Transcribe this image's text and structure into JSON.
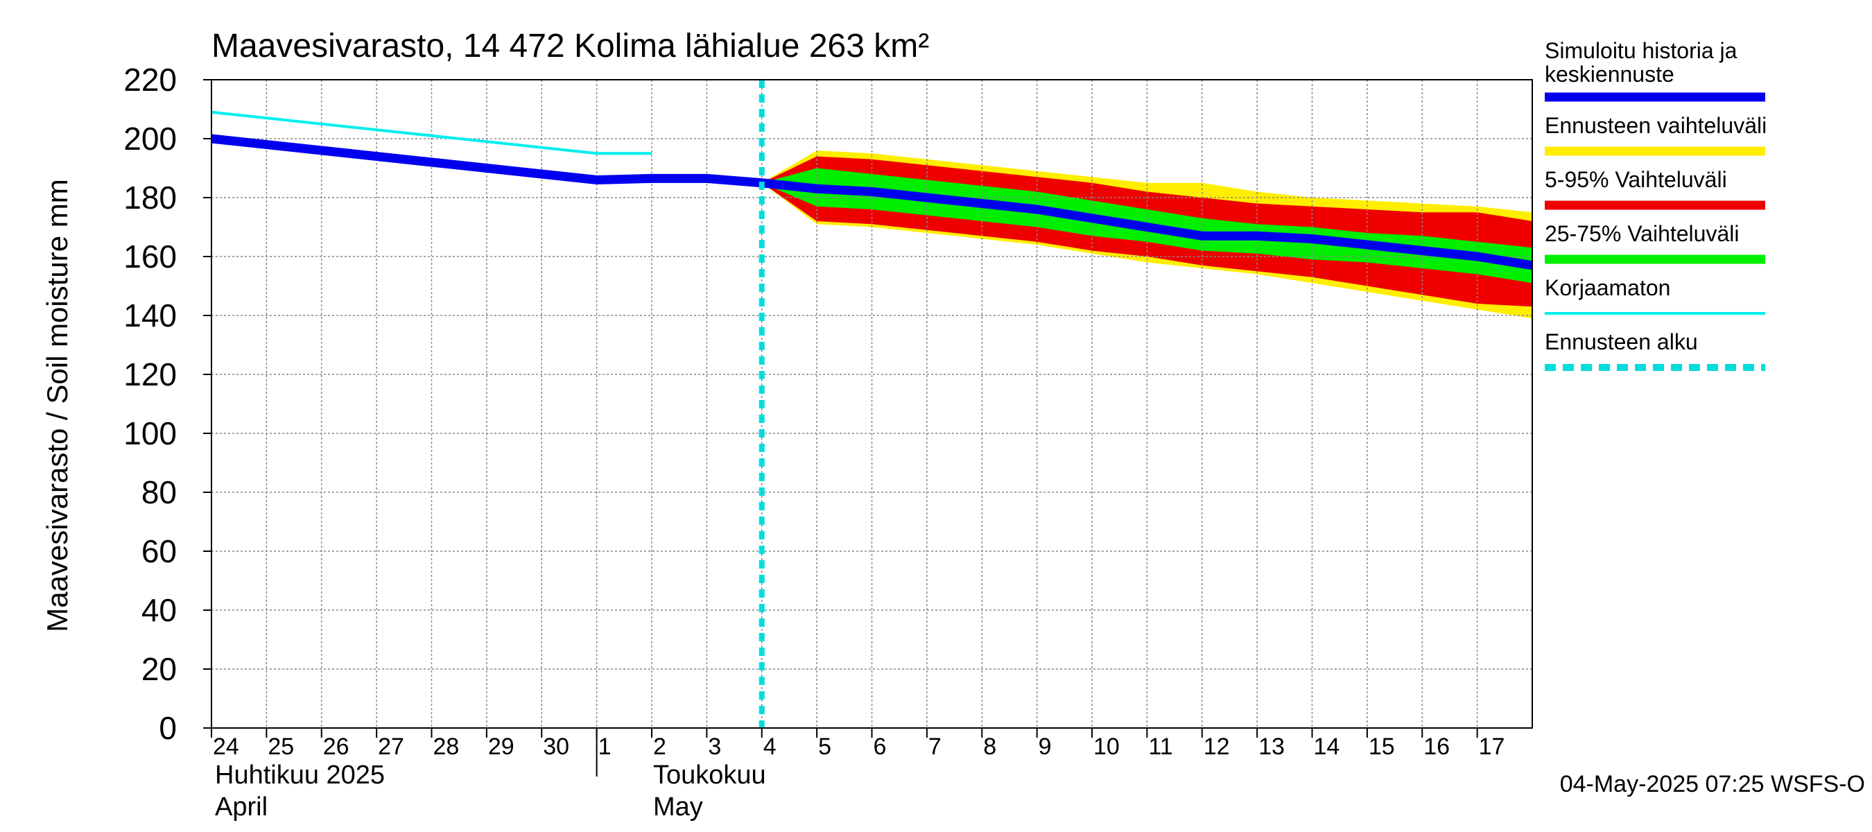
{
  "colors": {
    "median": "#0000ee",
    "range_outer": "#ffee00",
    "range_5_95": "#ee0000",
    "range_25_75": "#00ee00",
    "uncorrected": "#00eeee",
    "forecast_start": "#00dddd",
    "grid": "#888888"
  },
  "chart_data": {
    "type": "area",
    "title": "Maavesivarasto, 14 472 Kolima lähialue 263 km²",
    "ylabel": "Maavesivarasto / Soil moisture   mm",
    "ylim": [
      0,
      220
    ],
    "yticks": [
      0,
      20,
      40,
      60,
      80,
      100,
      120,
      140,
      160,
      180,
      200,
      220
    ],
    "xlim": [
      "2025-04-24",
      "2025-05-18"
    ],
    "grid": true,
    "legend_position": "right",
    "x_ticks": [
      "24",
      "25",
      "26",
      "27",
      "28",
      "29",
      "30",
      "1",
      "2",
      "3",
      "4",
      "5",
      "6",
      "7",
      "8",
      "9",
      "10",
      "11",
      "12",
      "13",
      "14",
      "15",
      "16",
      "17"
    ],
    "month_labels": [
      {
        "fi": "Huhtikuu  2025",
        "en": "April"
      },
      {
        "fi": "Toukokuu",
        "en": "May"
      }
    ],
    "forecast_start": "2025-05-04",
    "footer": "04-May-2025 07:25 WSFS-O",
    "series": [
      {
        "name": "Simuloitu historia ja keskiennuste",
        "kind": "line",
        "points": [
          [
            "2025-04-24",
            200
          ],
          [
            "2025-05-01",
            186
          ],
          [
            "2025-05-02",
            186.5
          ],
          [
            "2025-05-03",
            186.5
          ],
          [
            "2025-05-04",
            185
          ],
          [
            "2025-05-05",
            183
          ],
          [
            "2025-05-06",
            182
          ],
          [
            "2025-05-07",
            180
          ],
          [
            "2025-05-08",
            178
          ],
          [
            "2025-05-09",
            176
          ],
          [
            "2025-05-10",
            173
          ],
          [
            "2025-05-11",
            170
          ],
          [
            "2025-05-12",
            167
          ],
          [
            "2025-05-13",
            167
          ],
          [
            "2025-05-14",
            166
          ],
          [
            "2025-05-15",
            164
          ],
          [
            "2025-05-16",
            162
          ],
          [
            "2025-05-17",
            160
          ],
          [
            "2025-05-18",
            157
          ]
        ]
      },
      {
        "name": "Ennusteen vaihteluväli",
        "kind": "band",
        "upper": [
          [
            "2025-05-04",
            185
          ],
          [
            "2025-05-05",
            196
          ],
          [
            "2025-05-06",
            195
          ],
          [
            "2025-05-07",
            193
          ],
          [
            "2025-05-08",
            191
          ],
          [
            "2025-05-09",
            189
          ],
          [
            "2025-05-10",
            187
          ],
          [
            "2025-05-11",
            185
          ],
          [
            "2025-05-12",
            185
          ],
          [
            "2025-05-13",
            182
          ],
          [
            "2025-05-14",
            180
          ],
          [
            "2025-05-15",
            179
          ],
          [
            "2025-05-16",
            178
          ],
          [
            "2025-05-17",
            177
          ],
          [
            "2025-05-18",
            175
          ]
        ],
        "lower": [
          [
            "2025-05-04",
            185
          ],
          [
            "2025-05-05",
            171
          ],
          [
            "2025-05-06",
            170
          ],
          [
            "2025-05-07",
            168
          ],
          [
            "2025-05-08",
            166
          ],
          [
            "2025-05-09",
            164
          ],
          [
            "2025-05-10",
            161
          ],
          [
            "2025-05-11",
            158
          ],
          [
            "2025-05-12",
            156
          ],
          [
            "2025-05-13",
            154
          ],
          [
            "2025-05-14",
            151
          ],
          [
            "2025-05-15",
            148
          ],
          [
            "2025-05-16",
            145
          ],
          [
            "2025-05-17",
            142
          ],
          [
            "2025-05-18",
            139
          ]
        ]
      },
      {
        "name": "5-95% Vaihteluväli",
        "kind": "band",
        "upper": [
          [
            "2025-05-04",
            185
          ],
          [
            "2025-05-05",
            194
          ],
          [
            "2025-05-06",
            193
          ],
          [
            "2025-05-07",
            191
          ],
          [
            "2025-05-08",
            189
          ],
          [
            "2025-05-09",
            187
          ],
          [
            "2025-05-10",
            185
          ],
          [
            "2025-05-11",
            182
          ],
          [
            "2025-05-12",
            180
          ],
          [
            "2025-05-13",
            178
          ],
          [
            "2025-05-14",
            177
          ],
          [
            "2025-05-15",
            176
          ],
          [
            "2025-05-16",
            175
          ],
          [
            "2025-05-17",
            175
          ],
          [
            "2025-05-18",
            172
          ]
        ],
        "lower": [
          [
            "2025-05-04",
            185
          ],
          [
            "2025-05-05",
            172
          ],
          [
            "2025-05-06",
            171
          ],
          [
            "2025-05-07",
            169
          ],
          [
            "2025-05-08",
            167
          ],
          [
            "2025-05-09",
            165
          ],
          [
            "2025-05-10",
            162
          ],
          [
            "2025-05-11",
            160
          ],
          [
            "2025-05-12",
            157
          ],
          [
            "2025-05-13",
            155
          ],
          [
            "2025-05-14",
            153
          ],
          [
            "2025-05-15",
            150
          ],
          [
            "2025-05-16",
            147
          ],
          [
            "2025-05-17",
            144
          ],
          [
            "2025-05-18",
            143
          ]
        ]
      },
      {
        "name": "25-75% Vaihteluväli",
        "kind": "band",
        "upper": [
          [
            "2025-05-04",
            185
          ],
          [
            "2025-05-05",
            190
          ],
          [
            "2025-05-06",
            188
          ],
          [
            "2025-05-07",
            186
          ],
          [
            "2025-05-08",
            184
          ],
          [
            "2025-05-09",
            182
          ],
          [
            "2025-05-10",
            179
          ],
          [
            "2025-05-11",
            176
          ],
          [
            "2025-05-12",
            173
          ],
          [
            "2025-05-13",
            171
          ],
          [
            "2025-05-14",
            170
          ],
          [
            "2025-05-15",
            168
          ],
          [
            "2025-05-16",
            167
          ],
          [
            "2025-05-17",
            165
          ],
          [
            "2025-05-18",
            163
          ]
        ],
        "lower": [
          [
            "2025-05-04",
            185
          ],
          [
            "2025-05-05",
            177
          ],
          [
            "2025-05-06",
            176
          ],
          [
            "2025-05-07",
            174
          ],
          [
            "2025-05-08",
            172
          ],
          [
            "2025-05-09",
            170
          ],
          [
            "2025-05-10",
            167
          ],
          [
            "2025-05-11",
            165
          ],
          [
            "2025-05-12",
            162
          ],
          [
            "2025-05-13",
            161
          ],
          [
            "2025-05-14",
            159
          ],
          [
            "2025-05-15",
            158
          ],
          [
            "2025-05-16",
            156
          ],
          [
            "2025-05-17",
            154
          ],
          [
            "2025-05-18",
            151
          ]
        ]
      },
      {
        "name": "Korjaamaton",
        "kind": "line",
        "points": [
          [
            "2025-04-24",
            209
          ],
          [
            "2025-05-01",
            195
          ],
          [
            "2025-05-02",
            195
          ]
        ]
      },
      {
        "name": "Ennusteen alku",
        "kind": "vline",
        "x": "2025-05-04"
      }
    ]
  }
}
